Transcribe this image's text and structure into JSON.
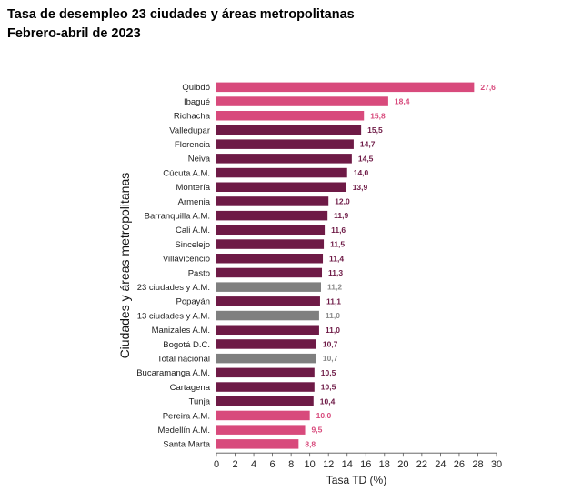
{
  "chart_data": {
    "type": "bar",
    "orientation": "horizontal",
    "title": "Tasa de desempleo 23 ciudades y áreas metropolitanas",
    "subtitle": "Febrero-abril de 2023",
    "xlabel": "Tasa TD (%)",
    "ylabel": "Ciudades y áreas metropolitanas",
    "xlim": [
      0,
      30
    ],
    "xticks": [
      0,
      2,
      4,
      6,
      8,
      10,
      12,
      14,
      16,
      18,
      20,
      22,
      24,
      26,
      28,
      30
    ],
    "categories": [
      "Quibdó",
      "Ibagué",
      "Riohacha",
      "Valledupar",
      "Florencia",
      "Neiva",
      "Cúcuta A.M.",
      "Montería",
      "Armenia",
      "Barranquilla A.M.",
      "Cali A.M.",
      "Sincelejo",
      "Villavicencio",
      "Pasto",
      "23 ciudades y A.M.",
      "Popayán",
      "13 ciudades y A.M.",
      "Manizales A.M.",
      "Bogotá D.C.",
      "Total nacional",
      "Bucaramanga A.M.",
      "Cartagena",
      "Tunja",
      "Pereira A.M.",
      "Medellín A.M.",
      "Santa Marta"
    ],
    "values": [
      27.6,
      18.4,
      15.8,
      15.5,
      14.7,
      14.5,
      14.0,
      13.9,
      12.0,
      11.9,
      11.6,
      11.5,
      11.4,
      11.3,
      11.2,
      11.1,
      11.0,
      11.0,
      10.7,
      10.7,
      10.5,
      10.5,
      10.4,
      10.0,
      9.5,
      8.8
    ],
    "value_labels": [
      "27,6",
      "18,4",
      "15,8",
      "15,5",
      "14,7",
      "14,5",
      "14,0",
      "13,9",
      "12,0",
      "11,9",
      "11,6",
      "11,5",
      "11,4",
      "11,3",
      "11,2",
      "11,1",
      "11,0",
      "11,0",
      "10,7",
      "10,7",
      "10,5",
      "10,5",
      "10,4",
      "10,0",
      "9,5",
      "8,8"
    ],
    "bar_groups": [
      "pink",
      "pink",
      "pink",
      "maroon",
      "maroon",
      "maroon",
      "maroon",
      "maroon",
      "maroon",
      "maroon",
      "maroon",
      "maroon",
      "maroon",
      "maroon",
      "gray",
      "maroon",
      "gray",
      "maroon",
      "maroon",
      "gray",
      "maroon",
      "maroon",
      "maroon",
      "pink",
      "pink",
      "pink"
    ],
    "colors": {
      "pink": "#d84a7c",
      "maroon": "#6e1a46",
      "gray": "#7f7f7f"
    },
    "label_colors": {
      "pink": "#d84a7c",
      "maroon": "#6e1a46",
      "gray": "#8c8c8c"
    }
  }
}
